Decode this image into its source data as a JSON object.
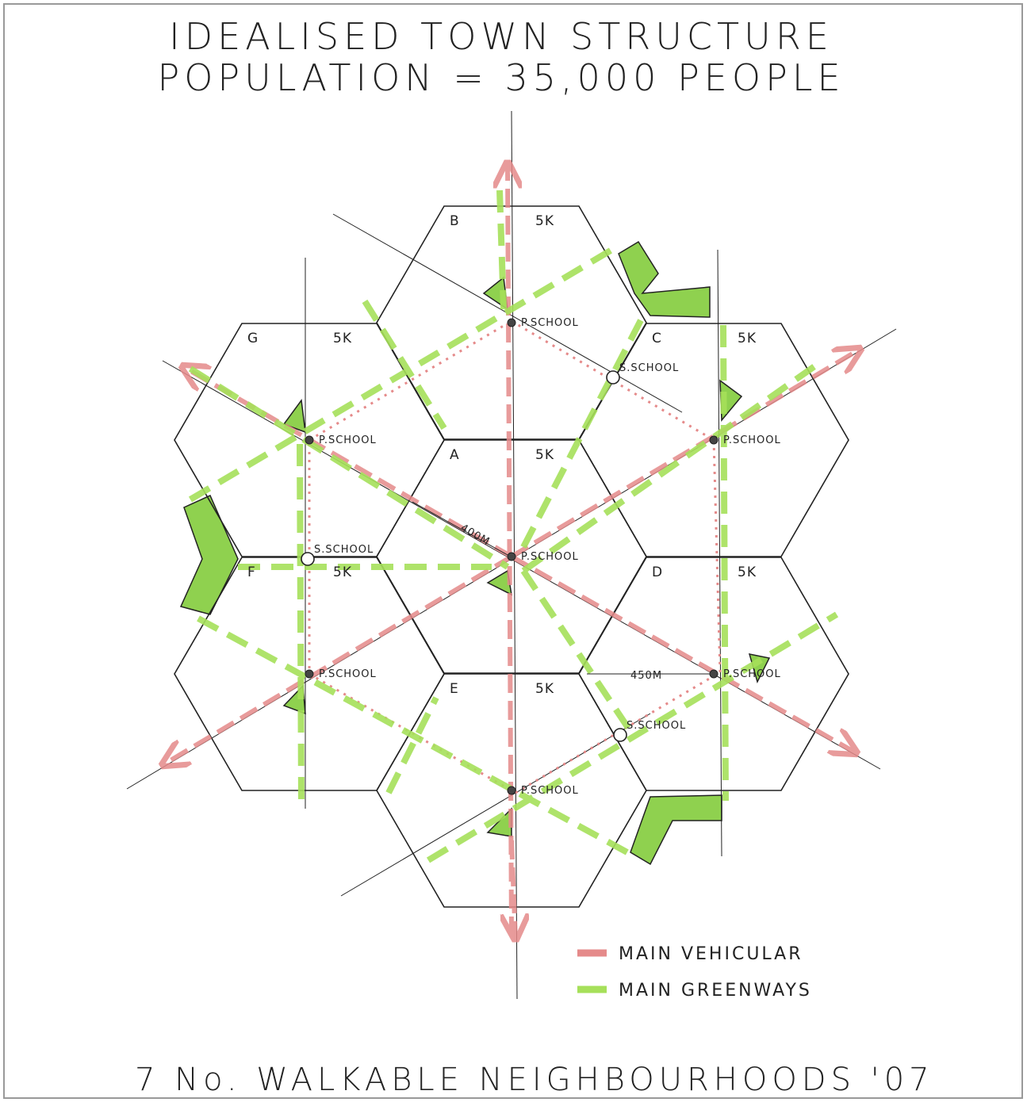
{
  "header": {
    "title": "IDEALISED TOWN STRUCTURE",
    "subtitle": "POPULATION = 35,000 PEOPLE"
  },
  "neighbourhoods": [
    {
      "label": "A",
      "population": "5K",
      "school": "P.SCHOOL"
    },
    {
      "label": "B",
      "population": "5K",
      "school": "P.SCHOOL"
    },
    {
      "label": "C",
      "population": "5K",
      "school": "P.SCHOOL"
    },
    {
      "label": "D",
      "population": "5K",
      "school": "P.SCHOOL"
    },
    {
      "label": "E",
      "population": "5K",
      "school": "P.SCHOOL"
    },
    {
      "label": "F",
      "population": "5K",
      "school": "P.SCHOOL"
    },
    {
      "label": "G",
      "population": "5K",
      "school": "P.SCHOOL"
    }
  ],
  "secondary_schools": [
    "S.SCHOOL",
    "S.SCHOOL",
    "S.SCHOOL"
  ],
  "dimensions": [
    "400M",
    "450M"
  ],
  "legend": [
    {
      "label": "MAIN VEHICULAR"
    },
    {
      "label": "MAIN GREENWAYS"
    }
  ],
  "footer": "7 No. WALKABLE NEIGHBOURHOODS '07"
}
